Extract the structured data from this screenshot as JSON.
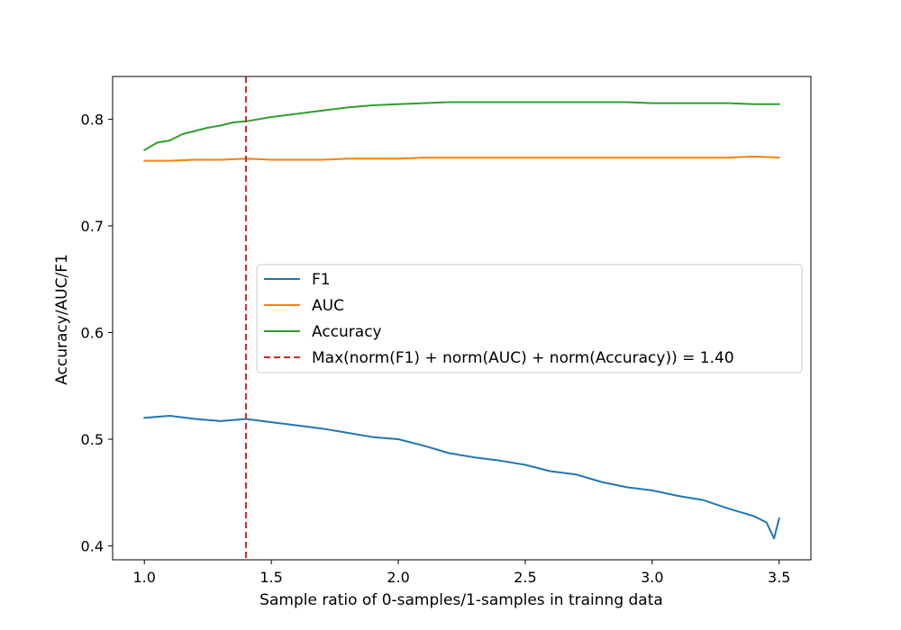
{
  "chart_data": {
    "type": "line",
    "title": "",
    "xlabel": "Sample ratio of 0-samples/1-samples in trainng data",
    "ylabel": "Accuracy/AUC/F1",
    "xlim": [
      0.875,
      3.625
    ],
    "ylim": [
      0.387,
      0.84
    ],
    "xticks": [
      1.0,
      1.5,
      2.0,
      2.5,
      3.0,
      3.5
    ],
    "xtick_labels": [
      "1.0",
      "1.5",
      "2.0",
      "2.5",
      "3.0",
      "3.5"
    ],
    "yticks": [
      0.4,
      0.5,
      0.6,
      0.7,
      0.8
    ],
    "ytick_labels": [
      "0.4",
      "0.5",
      "0.6",
      "0.7",
      "0.8"
    ],
    "grid": false,
    "legend_position": "center-right",
    "series": [
      {
        "name": "F1",
        "color": "#1f77b4",
        "x": [
          1.0,
          1.1,
          1.2,
          1.3,
          1.4,
          1.5,
          1.6,
          1.7,
          1.8,
          1.9,
          2.0,
          2.1,
          2.2,
          2.3,
          2.4,
          2.5,
          2.6,
          2.7,
          2.8,
          2.9,
          3.0,
          3.1,
          3.2,
          3.3,
          3.4,
          3.45,
          3.48,
          3.5
        ],
        "values": [
          0.52,
          0.522,
          0.519,
          0.517,
          0.519,
          0.516,
          0.513,
          0.51,
          0.506,
          0.502,
          0.5,
          0.494,
          0.487,
          0.483,
          0.48,
          0.476,
          0.47,
          0.467,
          0.46,
          0.455,
          0.452,
          0.447,
          0.443,
          0.435,
          0.428,
          0.422,
          0.407,
          0.426
        ]
      },
      {
        "name": "AUC",
        "color": "#ff7f0e",
        "x": [
          1.0,
          1.1,
          1.2,
          1.3,
          1.4,
          1.5,
          1.6,
          1.7,
          1.8,
          1.9,
          2.0,
          2.1,
          2.2,
          2.3,
          2.4,
          2.5,
          2.6,
          2.7,
          2.8,
          2.9,
          3.0,
          3.1,
          3.2,
          3.3,
          3.4,
          3.5
        ],
        "values": [
          0.761,
          0.761,
          0.762,
          0.762,
          0.763,
          0.762,
          0.762,
          0.762,
          0.763,
          0.763,
          0.763,
          0.764,
          0.764,
          0.764,
          0.764,
          0.764,
          0.764,
          0.764,
          0.764,
          0.764,
          0.764,
          0.764,
          0.764,
          0.764,
          0.765,
          0.764
        ]
      },
      {
        "name": "Accuracy",
        "color": "#2ca02c",
        "x": [
          1.0,
          1.05,
          1.1,
          1.15,
          1.2,
          1.25,
          1.3,
          1.35,
          1.4,
          1.5,
          1.6,
          1.7,
          1.8,
          1.9,
          2.0,
          2.1,
          2.2,
          2.3,
          2.4,
          2.5,
          2.6,
          2.7,
          2.8,
          2.9,
          3.0,
          3.1,
          3.2,
          3.3,
          3.4,
          3.5
        ],
        "values": [
          0.771,
          0.778,
          0.78,
          0.786,
          0.789,
          0.792,
          0.794,
          0.797,
          0.798,
          0.802,
          0.805,
          0.808,
          0.811,
          0.813,
          0.814,
          0.815,
          0.816,
          0.816,
          0.816,
          0.816,
          0.816,
          0.816,
          0.816,
          0.816,
          0.815,
          0.815,
          0.815,
          0.815,
          0.814,
          0.814
        ]
      }
    ],
    "vline": {
      "x": 1.4,
      "color": "#d62728",
      "style": "dashed",
      "label": "Max(norm(F1) + norm(AUC) + norm(Accuracy)) = 1.40"
    }
  }
}
